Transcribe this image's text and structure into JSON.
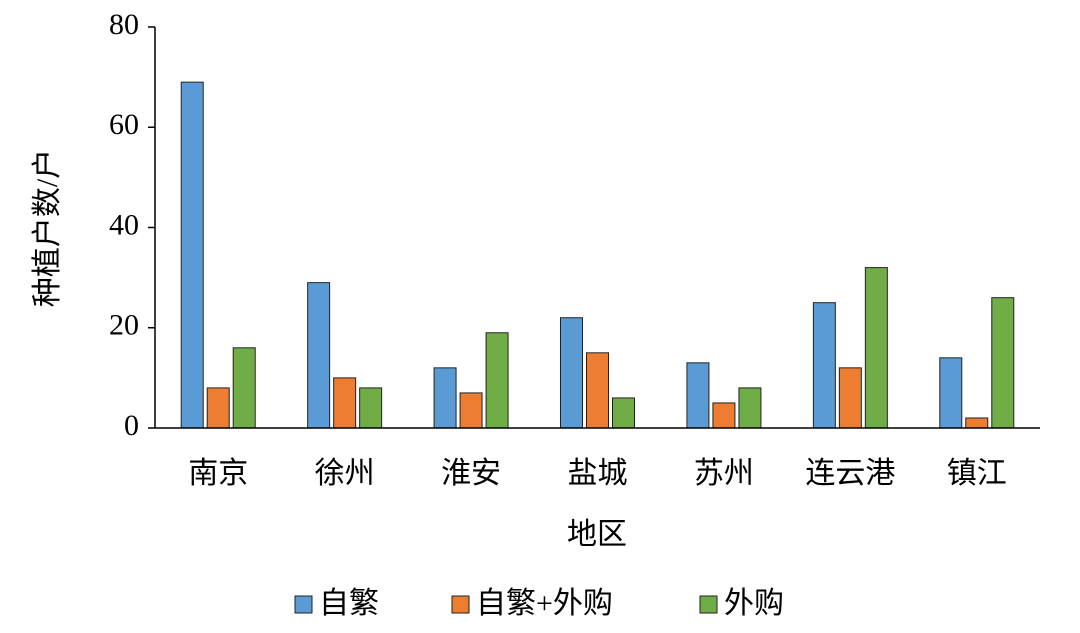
{
  "chart_data": {
    "type": "bar",
    "y_label": "种植户数/户",
    "x_label": "地区",
    "categories": [
      "南京",
      "徐州",
      "淮安",
      "盐城",
      "苏州",
      "连云港",
      "镇江"
    ],
    "series": [
      {
        "name": "自繁",
        "color": "#5b9bd5",
        "values": [
          69,
          29,
          12,
          22,
          13,
          25,
          14
        ]
      },
      {
        "name": "自繁+外购",
        "color": "#ed7d31",
        "values": [
          8,
          10,
          7,
          15,
          5,
          12,
          2
        ]
      },
      {
        "name": "外购",
        "color": "#70ad47",
        "values": [
          16,
          8,
          19,
          6,
          8,
          32,
          26
        ]
      }
    ],
    "ylim": [
      0,
      80
    ],
    "yticks": [
      0,
      20,
      40,
      60,
      80
    ],
    "grid": false,
    "legend": "bottom"
  }
}
